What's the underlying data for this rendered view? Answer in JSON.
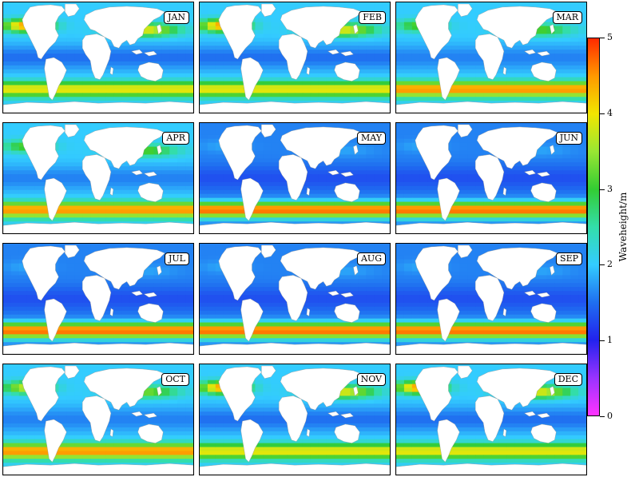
{
  "figure": {
    "panels": [
      {
        "month": "JAN",
        "row": 0,
        "col": 0,
        "intensity": "winter_nh"
      },
      {
        "month": "FEB",
        "row": 0,
        "col": 1,
        "intensity": "winter_nh"
      },
      {
        "month": "MAR",
        "row": 0,
        "col": 2,
        "intensity": "spring"
      },
      {
        "month": "APR",
        "row": 1,
        "col": 0,
        "intensity": "spring"
      },
      {
        "month": "MAY",
        "row": 1,
        "col": 1,
        "intensity": "winter_sh"
      },
      {
        "month": "JUN",
        "row": 1,
        "col": 2,
        "intensity": "winter_sh"
      },
      {
        "month": "JUL",
        "row": 2,
        "col": 0,
        "intensity": "winter_sh"
      },
      {
        "month": "AUG",
        "row": 2,
        "col": 1,
        "intensity": "winter_sh"
      },
      {
        "month": "SEP",
        "row": 2,
        "col": 2,
        "intensity": "winter_sh"
      },
      {
        "month": "OCT",
        "row": 3,
        "col": 0,
        "intensity": "autumn"
      },
      {
        "month": "NOV",
        "row": 3,
        "col": 1,
        "intensity": "winter_nh"
      },
      {
        "month": "DEC",
        "row": 3,
        "col": 2,
        "intensity": "winter_nh"
      }
    ]
  },
  "colorbar": {
    "title": "Waveheight/m",
    "range": [
      0,
      5
    ],
    "ticks": [
      "0",
      "1",
      "2",
      "3",
      "4",
      "5"
    ],
    "colors": [
      "#ff33ff",
      "#9933ff",
      "#2222ee",
      "#1f6ff0",
      "#33ccff",
      "#33ddaa",
      "#33cc33",
      "#99e633",
      "#f2e600",
      "#ff9900",
      "#ff2a00"
    ]
  }
}
